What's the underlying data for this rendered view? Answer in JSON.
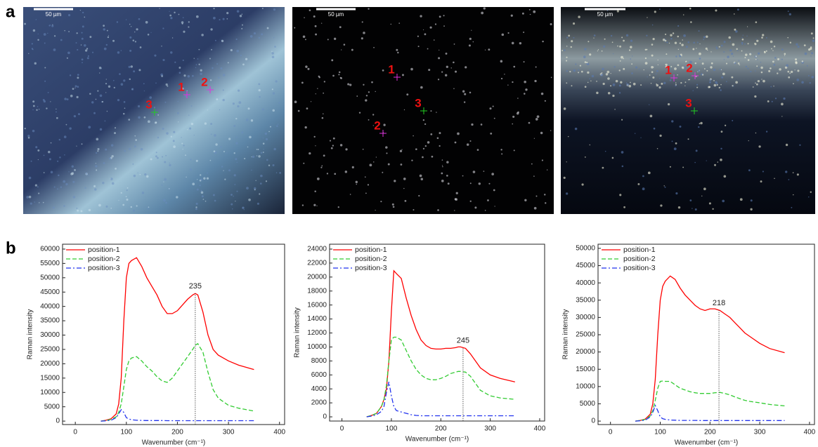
{
  "panel_labels": [
    "a",
    "b"
  ],
  "micrographs": [
    {
      "scale_bar": "50 µm",
      "markers": [
        "1",
        "2",
        "3"
      ]
    },
    {
      "scale_bar": "50 µm",
      "markers": [
        "1",
        "2",
        "3"
      ]
    },
    {
      "scale_bar": "50 µm",
      "markers": [
        "1",
        "2",
        "3"
      ]
    }
  ],
  "chart_data": [
    {
      "type": "line",
      "xlabel": "Wavenumber (cm⁻¹)",
      "ylabel": "Raman intensity",
      "x": [
        50,
        60,
        70,
        80,
        85,
        90,
        95,
        100,
        105,
        110,
        120,
        130,
        140,
        150,
        160,
        170,
        180,
        190,
        200,
        210,
        220,
        230,
        235,
        240,
        250,
        260,
        270,
        280,
        300,
        320,
        350
      ],
      "series": [
        {
          "name": "position-1",
          "color": "#ff0000",
          "dash": "solid",
          "values": [
            0,
            300,
            800,
            2500,
            6000,
            15000,
            35000,
            50000,
            55000,
            56000,
            57000,
            54000,
            50000,
            47000,
            44000,
            40000,
            37500,
            37500,
            38500,
            40500,
            42500,
            44000,
            44500,
            44000,
            38000,
            30000,
            25000,
            23000,
            21000,
            19500,
            18000
          ]
        },
        {
          "name": "position-2",
          "color": "#33cc33",
          "dash": "dash",
          "values": [
            0,
            200,
            600,
            1500,
            3000,
            6000,
            12000,
            18000,
            21000,
            22000,
            22500,
            21000,
            19000,
            17500,
            15500,
            14000,
            13500,
            15000,
            17500,
            20000,
            22500,
            25000,
            26500,
            27000,
            24000,
            17000,
            11000,
            8000,
            5500,
            4500,
            3500
          ]
        },
        {
          "name": "position-3",
          "color": "#2233ee",
          "dash": "dashdot",
          "values": [
            0,
            100,
            300,
            1200,
            2500,
            4000,
            3000,
            1200,
            700,
            500,
            300,
            250,
            200,
            200,
            200,
            200,
            150,
            150,
            150,
            150,
            150,
            150,
            150,
            150,
            150,
            150,
            150,
            150,
            150,
            150,
            150
          ]
        }
      ],
      "xlim": [
        -25,
        410
      ],
      "ylim": [
        -1200,
        61700
      ],
      "xticks": [
        0,
        100,
        200,
        300,
        400
      ],
      "yticks": [
        0,
        5000,
        10000,
        15000,
        20000,
        25000,
        30000,
        35000,
        40000,
        45000,
        50000,
        55000,
        60000
      ],
      "annotation": {
        "x": 235,
        "label": "235"
      },
      "legend": "upper left"
    },
    {
      "type": "line",
      "xlabel": "Wavenumber (cm⁻¹)",
      "ylabel": "Raman intensity",
      "x": [
        50,
        60,
        70,
        80,
        85,
        90,
        95,
        100,
        105,
        110,
        120,
        130,
        140,
        150,
        160,
        170,
        180,
        190,
        200,
        210,
        220,
        230,
        235,
        240,
        250,
        260,
        270,
        280,
        300,
        320,
        350
      ],
      "series": [
        {
          "name": "position-1",
          "color": "#ff0000",
          "dash": "solid",
          "values": [
            0,
            200,
            500,
            1500,
            2500,
            4000,
            8000,
            15000,
            20900,
            20500,
            19800,
            17000,
            14500,
            12500,
            11000,
            10200,
            9800,
            9700,
            9700,
            9800,
            9800,
            9900,
            10000,
            10000,
            9800,
            9000,
            8000,
            7000,
            6000,
            5500,
            5000
          ]
        },
        {
          "name": "position-2",
          "color": "#33cc33",
          "dash": "dash",
          "values": [
            0,
            200,
            500,
            1500,
            2500,
            4500,
            8000,
            11000,
            11400,
            11400,
            11000,
            9500,
            8000,
            6800,
            6000,
            5500,
            5300,
            5300,
            5500,
            5800,
            6200,
            6400,
            6500,
            6500,
            6400,
            5800,
            4800,
            3800,
            3000,
            2700,
            2500
          ]
        },
        {
          "name": "position-3",
          "color": "#2233ee",
          "dash": "dashdot",
          "values": [
            0,
            100,
            300,
            800,
            1500,
            3500,
            5000,
            3000,
            1500,
            900,
            700,
            500,
            300,
            200,
            150,
            150,
            150,
            150,
            150,
            150,
            150,
            150,
            150,
            150,
            150,
            150,
            150,
            150,
            150,
            150,
            150
          ]
        }
      ],
      "xlim": [
        -25,
        410
      ],
      "ylim": [
        -600,
        24700
      ],
      "xticks": [
        0,
        100,
        200,
        300,
        400
      ],
      "yticks": [
        0,
        2000,
        4000,
        6000,
        8000,
        10000,
        12000,
        14000,
        16000,
        18000,
        20000,
        22000,
        24000
      ],
      "annotation": {
        "x": 245,
        "label": "245"
      },
      "legend": "upper left"
    },
    {
      "type": "line",
      "xlabel": "Wavenumber (cm⁻¹)",
      "ylabel": "Raman intensity",
      "x": [
        50,
        60,
        70,
        80,
        85,
        90,
        95,
        100,
        105,
        110,
        120,
        130,
        140,
        150,
        160,
        170,
        180,
        190,
        200,
        210,
        220,
        230,
        235,
        240,
        250,
        260,
        270,
        280,
        300,
        320,
        350
      ],
      "series": [
        {
          "name": "position-1",
          "color": "#ff0000",
          "dash": "solid",
          "values": [
            0,
            200,
            600,
            2000,
            5000,
            12000,
            25000,
            35000,
            39000,
            40500,
            42000,
            41000,
            38500,
            36500,
            35000,
            33500,
            32500,
            32000,
            32500,
            32500,
            32000,
            31000,
            30500,
            30000,
            28500,
            27000,
            25500,
            24500,
            22500,
            21000,
            19800
          ]
        },
        {
          "name": "position-2",
          "color": "#33cc33",
          "dash": "dash",
          "values": [
            0,
            200,
            500,
            1500,
            3000,
            6000,
            9500,
            11500,
            11600,
            11500,
            11500,
            10500,
            9500,
            9000,
            8500,
            8200,
            8000,
            8000,
            8000,
            8200,
            8300,
            8000,
            7800,
            7600,
            7000,
            6500,
            6000,
            5700,
            5300,
            4800,
            4400
          ]
        },
        {
          "name": "position-3",
          "color": "#2233ee",
          "dash": "dashdot",
          "values": [
            0,
            100,
            300,
            1200,
            2500,
            4500,
            3000,
            1200,
            700,
            500,
            300,
            250,
            200,
            200,
            200,
            200,
            150,
            150,
            150,
            150,
            150,
            150,
            150,
            150,
            150,
            150,
            150,
            150,
            150,
            150,
            150
          ]
        }
      ],
      "xlim": [
        -25,
        410
      ],
      "ylim": [
        -1000,
        51200
      ],
      "xticks": [
        0,
        100,
        200,
        300,
        400
      ],
      "yticks": [
        0,
        5000,
        10000,
        15000,
        20000,
        25000,
        30000,
        35000,
        40000,
        45000,
        50000
      ],
      "annotation": {
        "x": 218,
        "label": "218"
      },
      "legend": "upper left"
    }
  ]
}
